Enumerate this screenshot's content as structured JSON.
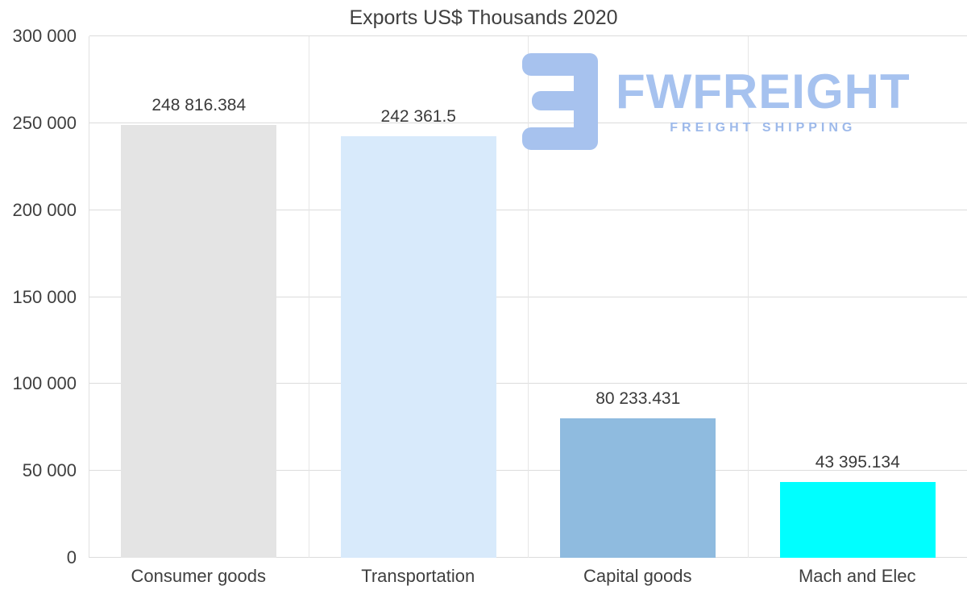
{
  "watermark": {
    "brand": "FWFREIGHT",
    "tagline": "FREIGHT SHIPPING",
    "color": "#a6c2ef"
  },
  "chart_data": {
    "type": "bar",
    "title": "Exports US$ Thousands 2020",
    "categories": [
      "Consumer goods",
      "Transportation",
      "Capital goods",
      "Mach and Elec"
    ],
    "values": [
      248816.384,
      242361.5,
      80233.431,
      43395.134
    ],
    "value_labels": [
      "248 816.384",
      "242 361.5",
      "80 233.431",
      "43 395.134"
    ],
    "bar_colors": [
      "#e4e4e4",
      "#d8eafb",
      "#8fbbdf",
      "#00ffff"
    ],
    "xlabel": "",
    "ylabel": "",
    "ylim": [
      0,
      300000
    ],
    "yticks": [
      0,
      50000,
      100000,
      150000,
      200000,
      250000,
      300000
    ],
    "ytick_labels": [
      "0",
      "50 000",
      "100 000",
      "150 000",
      "200 000",
      "250 000",
      "300 000"
    ],
    "grid": true,
    "legend": false
  }
}
